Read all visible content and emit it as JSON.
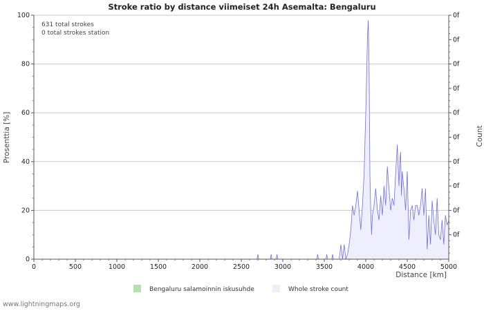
{
  "chart_data": {
    "type": "area",
    "title": "Stroke ratio by distance viimeiset 24h Asemalta: Bengaluru",
    "xlabel": "Distance   [km]",
    "ylabel": "Prosenttia   [%]",
    "y2label": "Count",
    "xlim": [
      0,
      5000
    ],
    "ylim": [
      0,
      100
    ],
    "x_ticks": [
      "0",
      "500",
      "1000",
      "1500",
      "2000",
      "2500",
      "3000",
      "3500",
      "4000",
      "4500",
      "5000"
    ],
    "y_ticks": [
      "0",
      "20",
      "40",
      "60",
      "80",
      "100"
    ],
    "y2_ticks": [
      "0f",
      "0f",
      "0f",
      "0f",
      "0f",
      "0f",
      "0f",
      "0f",
      "0f",
      "0f"
    ],
    "annotations": [
      "631 total strokes",
      "0 total strokes station"
    ],
    "legend": [
      {
        "label": "Bengaluru salamoinnin iskusuhde",
        "color": "#b6e0b0"
      },
      {
        "label": "Whole stroke count",
        "color": "#eeeefc"
      }
    ],
    "series": [
      {
        "name": "Bengaluru salamoinnin iskusuhde",
        "x": [
          0,
          5000
        ],
        "values": [
          0,
          0
        ]
      },
      {
        "name": "Whole stroke count",
        "x": [
          0,
          2690,
          2700,
          2710,
          2850,
          2860,
          2870,
          2920,
          2930,
          2940,
          3410,
          3420,
          3430,
          3520,
          3530,
          3540,
          3590,
          3600,
          3610,
          3680,
          3700,
          3720,
          3740,
          3760,
          3780,
          3800,
          3820,
          3840,
          3860,
          3880,
          3900,
          3920,
          3940,
          3960,
          3980,
          4000,
          4020,
          4030,
          4040,
          4050,
          4060,
          4070,
          4080,
          4100,
          4120,
          4140,
          4160,
          4180,
          4200,
          4220,
          4240,
          4260,
          4280,
          4300,
          4320,
          4340,
          4360,
          4380,
          4400,
          4410,
          4420,
          4430,
          4440,
          4460,
          4480,
          4500,
          4520,
          4540,
          4560,
          4580,
          4600,
          4620,
          4640,
          4660,
          4680,
          4700,
          4720,
          4740,
          4760,
          4780,
          4800,
          4820,
          4840,
          4860,
          4880,
          4900,
          4920,
          4940,
          4960,
          4980,
          5000
        ],
        "values": [
          0,
          0,
          2,
          0,
          0,
          2,
          0,
          0,
          2,
          0,
          0,
          2,
          0,
          0,
          2,
          0,
          0,
          2,
          0,
          0,
          6,
          0,
          6,
          0,
          2,
          6,
          12,
          22,
          18,
          22,
          28,
          20,
          12,
          22,
          35,
          60,
          90,
          98,
          80,
          35,
          20,
          10,
          18,
          22,
          29,
          20,
          16,
          26,
          18,
          30,
          22,
          38,
          29,
          20,
          25,
          22,
          35,
          47,
          30,
          40,
          44,
          26,
          36,
          29,
          20,
          36,
          8,
          20,
          22,
          16,
          22,
          22,
          18,
          22,
          29,
          18,
          29,
          4,
          18,
          6,
          24,
          16,
          10,
          25,
          10,
          8,
          16,
          6,
          18,
          14,
          16
        ]
      }
    ]
  },
  "footer": "www.lightningmaps.org"
}
